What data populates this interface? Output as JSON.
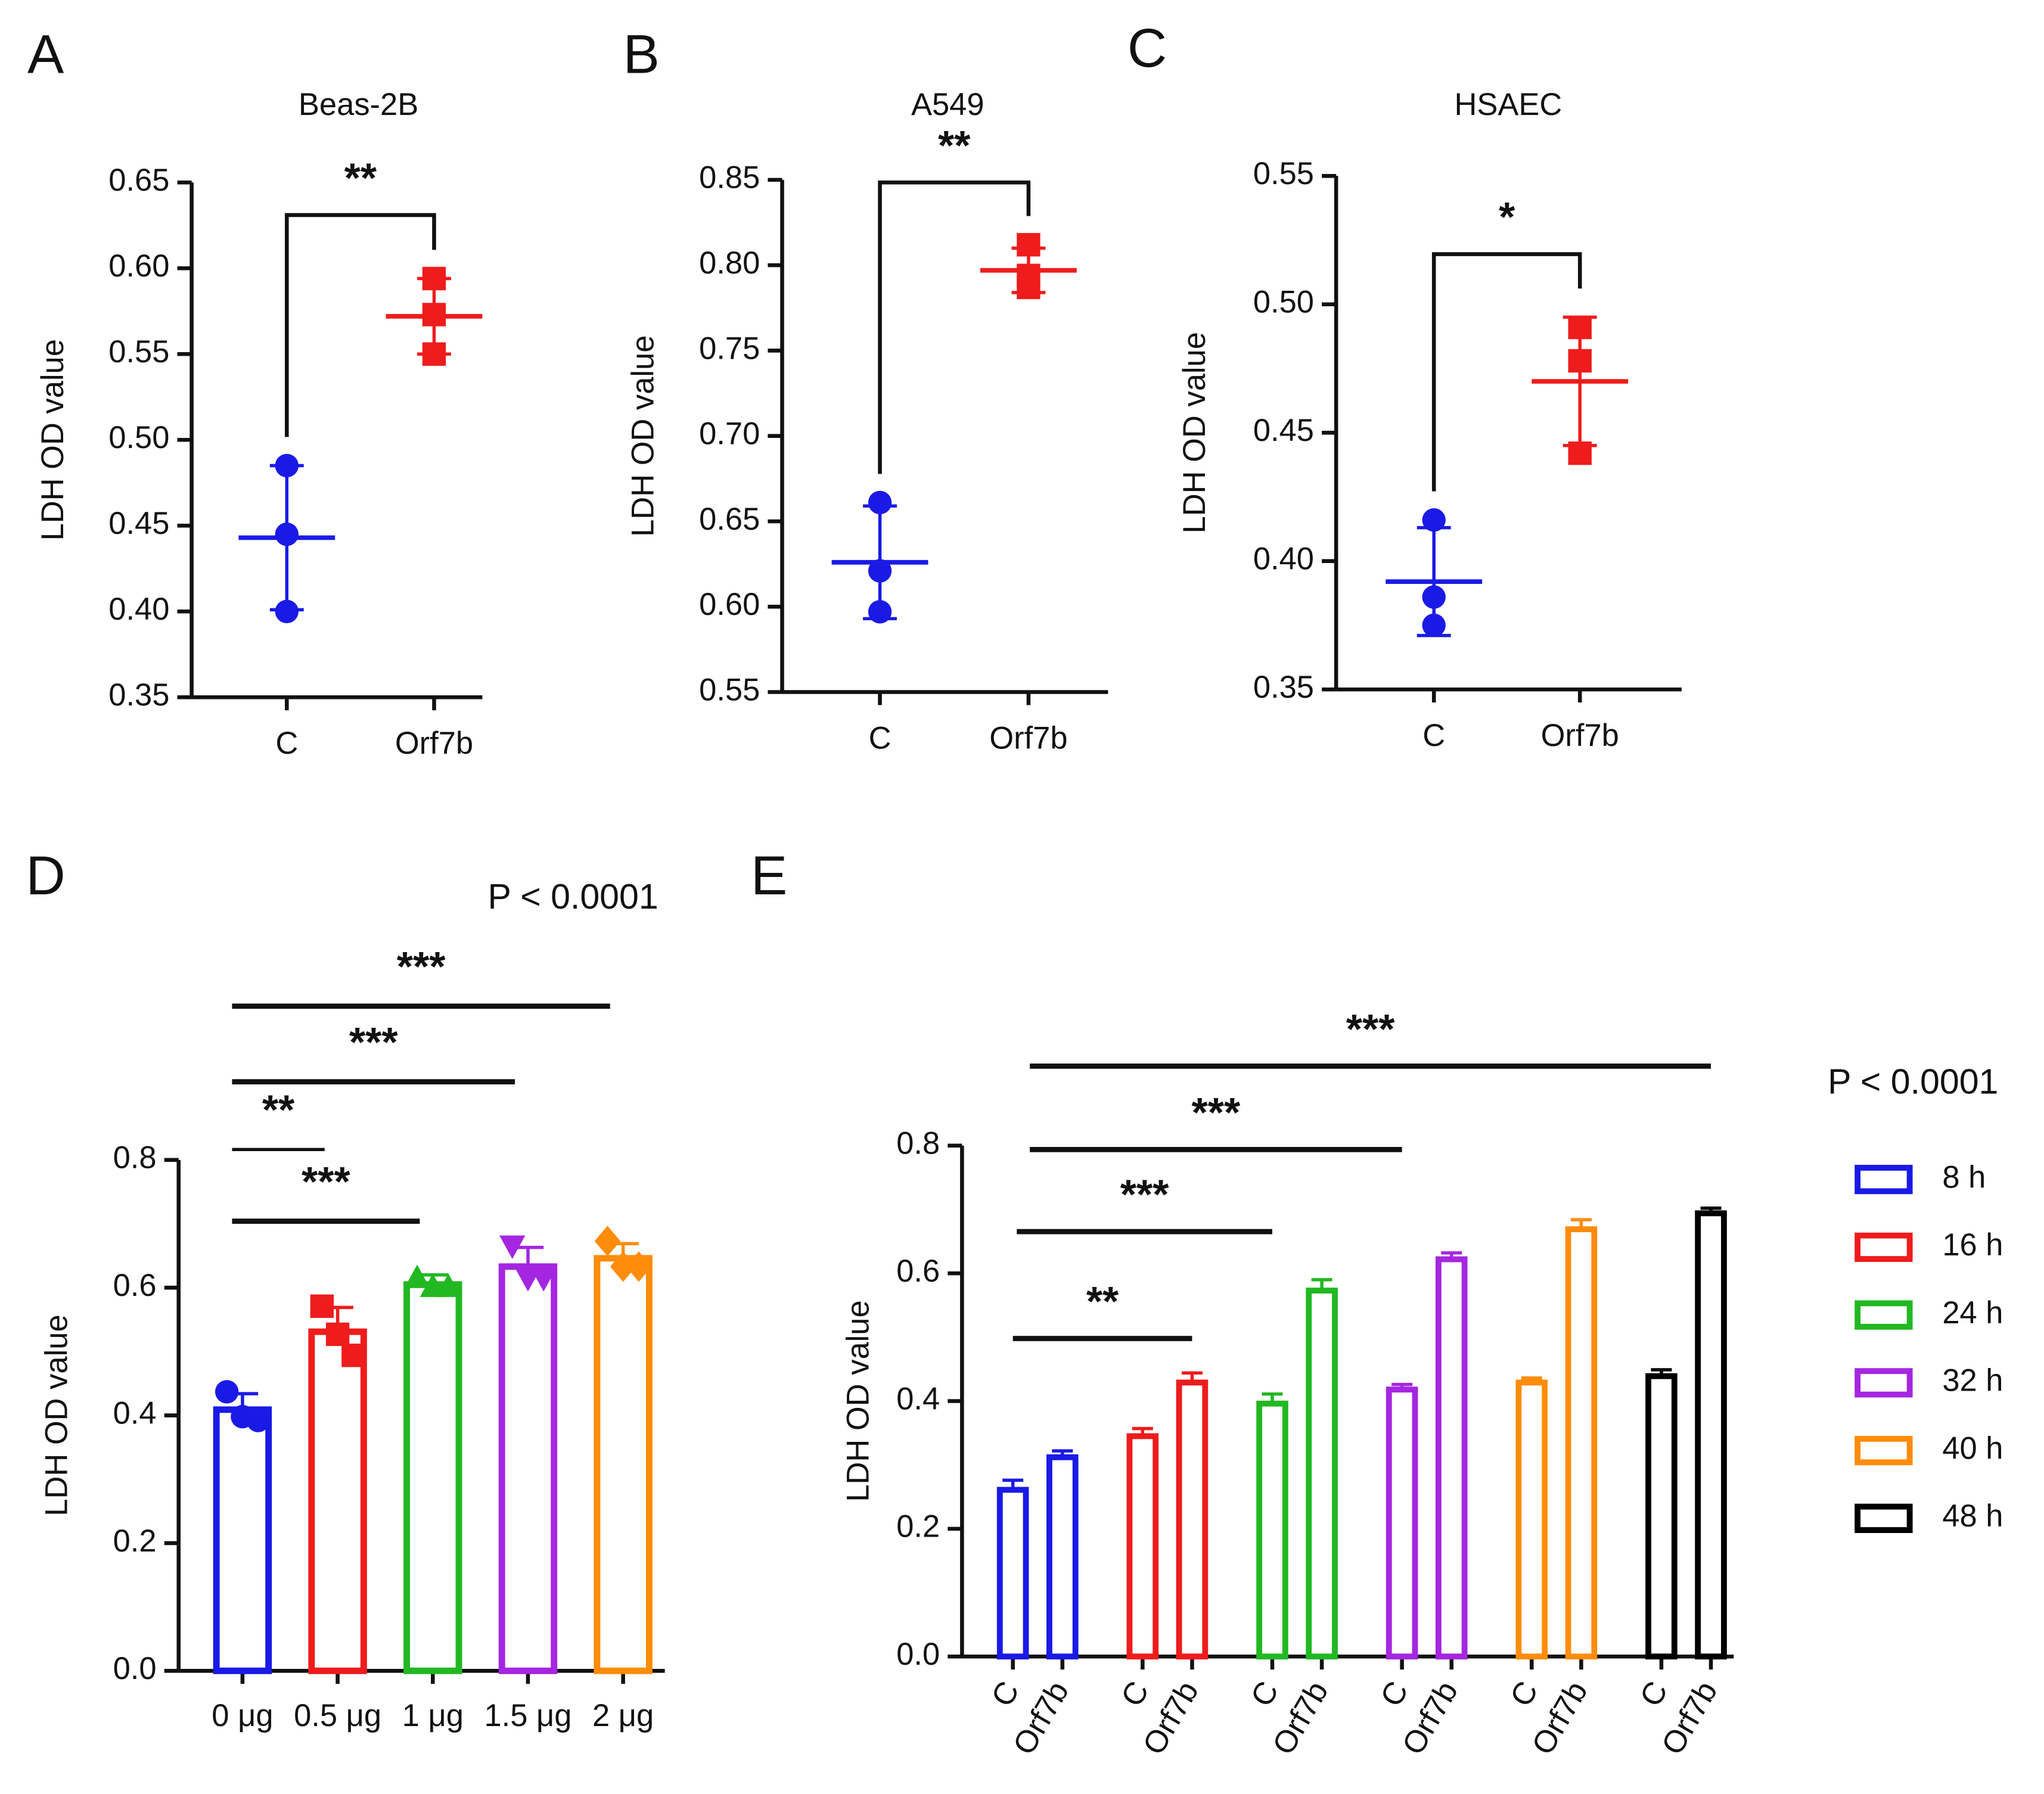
{
  "chart_data": [
    {
      "type": "dot",
      "panel": "A",
      "title": "Beas-2B",
      "ylabel": "LDH OD value",
      "annotation": "**",
      "categories": [
        "C",
        "Orf7b"
      ],
      "groups": [
        {
          "color": "#1a1ae6",
          "points": [
            0.485,
            0.445,
            0.4
          ],
          "mean": 0.443,
          "sd": 0.042
        },
        {
          "color": "#ee1c1c",
          "points": [
            0.594,
            0.573,
            0.55
          ],
          "mean": 0.572,
          "sd": 0.022
        }
      ],
      "ylim": [
        0.35,
        0.65
      ],
      "yticks": [
        0.35,
        {
          "value": 0.4,
          "label": "0.40"
        },
        0.45,
        {
          "value": 0.5,
          "label": "0.50"
        },
        0.55,
        {
          "value": 0.6,
          "label": "0.60"
        },
        0.65
      ]
    },
    {
      "type": "dot",
      "panel": "B",
      "title": "A549",
      "ylabel": "LDH OD value",
      "annotation": "**",
      "categories": [
        "C",
        "Orf7b"
      ],
      "groups": [
        {
          "color": "#1a1ae6",
          "points": [
            0.661,
            0.621,
            0.597
          ],
          "mean": 0.626,
          "sd": 0.033
        },
        {
          "color": "#ee1c1c",
          "points": [
            0.812,
            0.794,
            0.787
          ],
          "mean": 0.797,
          "sd": 0.013
        }
      ],
      "ylim": [
        0.55,
        0.85
      ],
      "yticks": [
        0.55,
        {
          "value": 0.6,
          "label": "0.60"
        },
        0.65,
        {
          "value": 0.7,
          "label": "0.70"
        },
        0.75,
        {
          "value": 0.8,
          "label": "0.80"
        },
        0.85
      ]
    },
    {
      "type": "dot",
      "panel": "C",
      "title": "HSAEC",
      "ylabel": "LDH OD value",
      "annotation": "*",
      "categories": [
        "C",
        "Orf7b"
      ],
      "groups": [
        {
          "color": "#1a1ae6",
          "points": [
            0.416,
            0.386,
            0.375
          ],
          "mean": 0.392,
          "sd": 0.021
        },
        {
          "color": "#ee1c1c",
          "points": [
            0.491,
            0.478,
            0.442
          ],
          "mean": 0.47,
          "sd": 0.025
        }
      ],
      "ylim": [
        0.35,
        0.55
      ],
      "yticks": [
        0.35,
        {
          "value": 0.4,
          "label": "0.40"
        },
        0.45,
        {
          "value": 0.5,
          "label": "0.50"
        },
        0.55
      ]
    },
    {
      "type": "bar",
      "panel": "D",
      "ylabel": "LDH OD value",
      "annotation": "P < 0.0001",
      "categories": [
        "0 μg",
        "0.5 μg",
        "1 μg",
        "1.5 μg",
        "2 μg"
      ],
      "values": [
        0.409,
        0.531,
        0.605,
        0.633,
        0.646
      ],
      "errors": [
        0.025,
        0.038,
        0.015,
        0.03,
        0.023
      ],
      "points": [
        [
          0.437,
          0.398,
          0.392
        ],
        [
          0.571,
          0.527,
          0.494
        ],
        [
          0.614,
          0.6,
          0.6
        ],
        [
          0.667,
          0.616,
          0.616
        ],
        [
          0.673,
          0.633,
          0.633
        ]
      ],
      "colors": [
        "#1a1ae6",
        "#ee1c1c",
        "#22b822",
        "#a526e0",
        "#ff8c0a"
      ],
      "markers": [
        "circle",
        "square",
        "triangle-up",
        "triangle-down",
        "diamond"
      ],
      "comparisons": [
        {
          "label": "***",
          "from": "0 μg",
          "to": "2 μg"
        },
        {
          "label": "***",
          "from": "0 μg",
          "to": "1.5 μg"
        },
        {
          "label": "**",
          "from": "0 μg",
          "to": "0.5 μg"
        },
        {
          "label": "***",
          "from": "0 μg",
          "to": "1 μg"
        }
      ],
      "ylim": [
        0,
        0.8
      ],
      "yticks": [
        {
          "value": 0,
          "label": "0.0"
        },
        0.2,
        0.4,
        0.6,
        0.8
      ]
    },
    {
      "type": "grouped_bar",
      "panel": "E",
      "ylabel": "LDH OD value",
      "annotation": "P < 0.0001",
      "categories": [
        "C",
        "Orf7b"
      ],
      "series": [
        {
          "name": "8 h",
          "color": "#1a1ae6",
          "values": [
            0.261,
            0.312
          ],
          "errors": [
            0.015,
            0.01
          ]
        },
        {
          "name": "16 h",
          "color": "#ee1c1c",
          "values": [
            0.345,
            0.429
          ],
          "errors": [
            0.012,
            0.015
          ]
        },
        {
          "name": "24 h",
          "color": "#22b822",
          "values": [
            0.396,
            0.573
          ],
          "errors": [
            0.015,
            0.017
          ]
        },
        {
          "name": "32 h",
          "color": "#a526e0",
          "values": [
            0.418,
            0.622
          ],
          "errors": [
            0.008,
            0.01
          ]
        },
        {
          "name": "40 h",
          "color": "#ff8c0a",
          "values": [
            0.429,
            0.669
          ],
          "errors": [
            0.007,
            0.015
          ]
        },
        {
          "name": "48 h",
          "color": "#000000",
          "values": [
            0.439,
            0.694
          ],
          "errors": [
            0.01,
            0.008
          ]
        }
      ],
      "comparisons": [
        {
          "label": "**",
          "from": [
            "8 h",
            "C"
          ],
          "to": [
            "16 h",
            "Orf7b"
          ]
        },
        {
          "label": "***",
          "from": [
            "8 h",
            "C"
          ],
          "to": [
            "24 h",
            "C"
          ]
        },
        {
          "label": "***",
          "from": [
            "8 h",
            "C"
          ],
          "to": [
            "32 h",
            "C"
          ]
        },
        {
          "label": "***",
          "from": [
            "8 h",
            "C"
          ],
          "to": [
            "48 h",
            "Orf7b"
          ]
        }
      ],
      "ylim": [
        0,
        0.8
      ],
      "yticks": [
        {
          "value": 0,
          "label": "0.0"
        },
        0.2,
        0.4,
        0.6,
        0.8
      ]
    }
  ]
}
